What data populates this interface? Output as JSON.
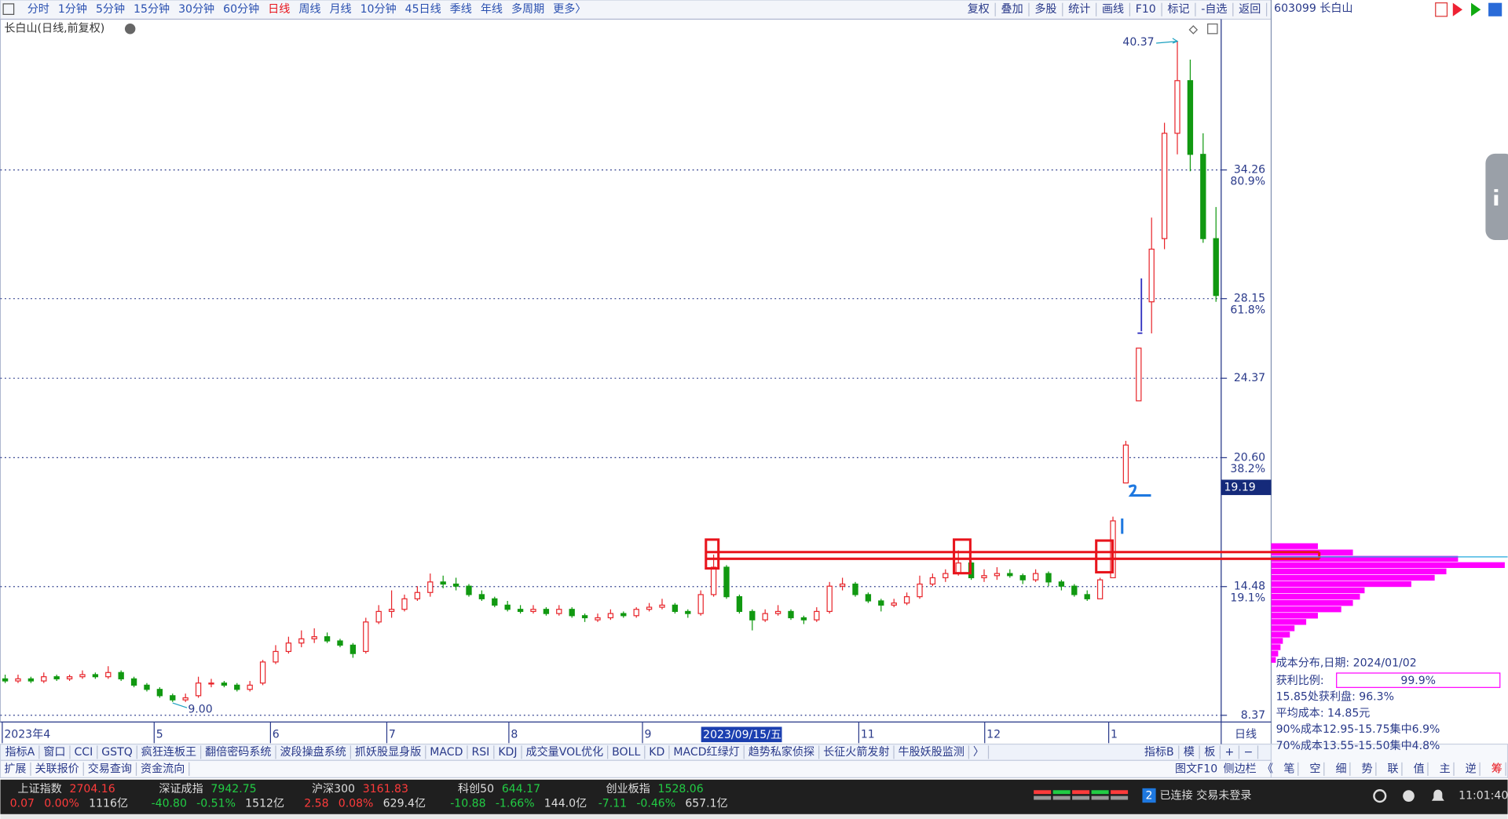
{
  "toolbar": {
    "periods": [
      "分时",
      "1分钟",
      "5分钟",
      "15分钟",
      "30分钟",
      "60分钟",
      "日线",
      "周线",
      "月线",
      "10分钟",
      "45日线",
      "季线",
      "年线",
      "多周期",
      "更多〉"
    ],
    "tools": [
      "复权",
      "叠加",
      "多股",
      "统计",
      "画线",
      "F10",
      "标记",
      "-自选",
      "返回"
    ],
    "stock": "603099 长白山"
  },
  "chart_data": {
    "type": "candlestick",
    "title": "长白山(日线,前复权)",
    "up_color": "#e8262c",
    "down_color": "#119911",
    "grid": true,
    "ylim": [
      8.05,
      41.28
    ],
    "yticks": [
      8.37,
      14.48,
      {
        "value": 20.6,
        "label": "20.60"
      },
      24.37,
      28.15,
      34.26
    ],
    "ytick_percent_labels": [
      null,
      "19.1%",
      "38.2%",
      null,
      "61.8%",
      "80.9%"
    ],
    "x_labels": [
      "2023年4",
      "5",
      "6",
      "7",
      "8",
      "9",
      "11",
      "12",
      "1"
    ],
    "period_label": "日线",
    "cursor_date": "2023/09/15/五",
    "cursor_price": 19.19,
    "high_label": "40.37",
    "low_label": "9.00",
    "candles": [
      [
        10.1,
        10.3,
        9.9,
        10.0
      ],
      [
        10.0,
        10.3,
        9.9,
        10.1
      ],
      [
        10.1,
        10.2,
        9.9,
        10.0
      ],
      [
        10.0,
        10.4,
        9.9,
        10.2
      ],
      [
        10.2,
        10.3,
        10.0,
        10.1
      ],
      [
        10.1,
        10.3,
        10.0,
        10.2
      ],
      [
        10.2,
        10.5,
        10.1,
        10.3
      ],
      [
        10.3,
        10.4,
        10.1,
        10.2
      ],
      [
        10.2,
        10.7,
        10.1,
        10.4
      ],
      [
        10.4,
        10.5,
        10.0,
        10.1
      ],
      [
        10.1,
        10.2,
        9.7,
        9.8
      ],
      [
        9.8,
        9.9,
        9.5,
        9.6
      ],
      [
        9.6,
        9.7,
        9.2,
        9.3
      ],
      [
        9.3,
        9.4,
        9.0,
        9.1
      ],
      [
        9.1,
        9.4,
        9.0,
        9.2
      ],
      [
        9.3,
        10.2,
        9.2,
        9.9
      ],
      [
        9.9,
        10.1,
        9.7,
        9.9
      ],
      [
        9.9,
        10.0,
        9.7,
        9.8
      ],
      [
        9.8,
        9.9,
        9.5,
        9.6
      ],
      [
        9.6,
        10.0,
        9.5,
        9.8
      ],
      [
        9.9,
        11.0,
        9.8,
        10.9
      ],
      [
        10.9,
        11.7,
        10.8,
        11.4
      ],
      [
        11.4,
        12.1,
        11.3,
        11.8
      ],
      [
        11.8,
        12.4,
        11.6,
        12.0
      ],
      [
        12.0,
        12.5,
        11.8,
        12.1
      ],
      [
        12.1,
        12.3,
        11.8,
        11.9
      ],
      [
        11.9,
        12.0,
        11.6,
        11.7
      ],
      [
        11.7,
        11.8,
        11.1,
        11.3
      ],
      [
        11.4,
        13.0,
        11.3,
        12.8
      ],
      [
        12.8,
        13.6,
        12.7,
        13.3
      ],
      [
        13.3,
        14.3,
        13.0,
        13.4
      ],
      [
        13.4,
        14.1,
        13.3,
        13.9
      ],
      [
        13.9,
        14.5,
        13.8,
        14.2
      ],
      [
        14.2,
        15.1,
        14.0,
        14.7
      ],
      [
        14.7,
        15.0,
        14.4,
        14.6
      ],
      [
        14.6,
        14.9,
        14.3,
        14.5
      ],
      [
        14.5,
        14.6,
        14.0,
        14.1
      ],
      [
        14.1,
        14.3,
        13.8,
        13.9
      ],
      [
        13.9,
        14.0,
        13.5,
        13.6
      ],
      [
        13.6,
        13.8,
        13.3,
        13.4
      ],
      [
        13.4,
        13.6,
        13.2,
        13.3
      ],
      [
        13.3,
        13.6,
        13.2,
        13.4
      ],
      [
        13.4,
        13.5,
        13.1,
        13.2
      ],
      [
        13.2,
        13.6,
        13.1,
        13.4
      ],
      [
        13.4,
        13.5,
        13.0,
        13.1
      ],
      [
        13.1,
        13.2,
        12.8,
        13.0
      ],
      [
        12.9,
        13.2,
        12.8,
        13.0
      ],
      [
        13.0,
        13.4,
        12.9,
        13.2
      ],
      [
        13.2,
        13.3,
        13.0,
        13.1
      ],
      [
        13.1,
        13.5,
        13.0,
        13.4
      ],
      [
        13.4,
        13.7,
        13.3,
        13.5
      ],
      [
        13.5,
        13.9,
        13.4,
        13.6
      ],
      [
        13.6,
        13.7,
        13.2,
        13.3
      ],
      [
        13.3,
        13.4,
        13.0,
        13.2
      ],
      [
        13.2,
        14.3,
        13.1,
        14.1
      ],
      [
        14.1,
        16.0,
        14.0,
        15.4
      ],
      [
        15.4,
        15.5,
        13.9,
        14.0
      ],
      [
        14.0,
        14.1,
        13.2,
        13.3
      ],
      [
        13.3,
        13.4,
        12.4,
        12.9
      ],
      [
        12.9,
        13.4,
        12.8,
        13.2
      ],
      [
        13.2,
        13.6,
        13.1,
        13.3
      ],
      [
        13.3,
        13.4,
        12.9,
        13.0
      ],
      [
        13.0,
        13.1,
        12.7,
        12.9
      ],
      [
        12.9,
        13.5,
        12.8,
        13.3
      ],
      [
        13.3,
        14.7,
        13.2,
        14.5
      ],
      [
        14.5,
        14.9,
        14.3,
        14.6
      ],
      [
        14.6,
        14.7,
        14.0,
        14.1
      ],
      [
        14.1,
        14.2,
        13.7,
        13.8
      ],
      [
        13.8,
        13.9,
        13.3,
        13.6
      ],
      [
        13.6,
        13.9,
        13.5,
        13.7
      ],
      [
        13.7,
        14.2,
        13.6,
        14.0
      ],
      [
        14.0,
        15.0,
        13.9,
        14.6
      ],
      [
        14.6,
        15.1,
        14.5,
        14.9
      ],
      [
        14.9,
        15.3,
        14.7,
        15.1
      ],
      [
        15.1,
        16.2,
        15.0,
        15.6
      ],
      [
        15.6,
        15.7,
        14.8,
        14.9
      ],
      [
        14.9,
        15.3,
        14.7,
        15.0
      ],
      [
        15.0,
        15.4,
        14.8,
        15.1
      ],
      [
        15.1,
        15.3,
        14.9,
        15.0
      ],
      [
        15.0,
        15.1,
        14.6,
        14.8
      ],
      [
        14.8,
        15.3,
        14.7,
        15.1
      ],
      [
        15.1,
        15.2,
        14.5,
        14.7
      ],
      [
        14.7,
        14.8,
        14.3,
        14.5
      ],
      [
        14.5,
        14.6,
        14.0,
        14.1
      ],
      [
        14.1,
        14.3,
        13.8,
        13.9
      ],
      [
        13.9,
        14.9,
        13.9,
        14.8
      ],
      [
        14.9,
        17.8,
        14.9,
        17.6
      ],
      [
        19.4,
        21.4,
        19.4,
        21.2
      ],
      [
        23.3,
        25.8,
        23.3,
        25.8
      ],
      [
        28.0,
        32.0,
        26.5,
        30.5
      ],
      [
        31.0,
        36.5,
        30.5,
        36.0
      ],
      [
        36.0,
        40.37,
        35.0,
        38.5
      ],
      [
        38.5,
        39.5,
        34.2,
        35.0
      ],
      [
        35.0,
        36.0,
        30.8,
        31.0
      ],
      [
        31.0,
        32.5,
        28.0,
        28.3
      ]
    ],
    "cost_distribution": {
      "type": "bar",
      "color": "#ff00ff",
      "prices": [
        16.4,
        16.1,
        15.8,
        15.5,
        15.2,
        14.9,
        14.6,
        14.3,
        14.0,
        13.7,
        13.4,
        13.1,
        12.8,
        12.5,
        12.2,
        11.9,
        11.6,
        11.3,
        11.0
      ],
      "values": [
        20,
        35,
        80,
        100,
        75,
        70,
        60,
        40,
        38,
        35,
        30,
        20,
        15,
        10,
        8,
        5,
        4,
        3,
        2
      ]
    }
  },
  "cost_info": {
    "title": "成本分布,日期: 2024/01/02",
    "profit_ratio_label": "获利比例:",
    "profit_ratio": "99.9%",
    "lines": [
      "15.85处获利盘: 96.3%",
      "平均成本: 14.85元",
      "90%成本12.95-15.75集中6.9%",
      "70%成本13.55-15.50集中4.8%"
    ]
  },
  "indicator_tabs": [
    "指标A",
    "窗口",
    "CCI",
    "GSTQ",
    "疯狂连板王",
    "翻倍密码系统",
    "波段操盘系统",
    "抓妖股显身版",
    "MACD",
    "RSI",
    "KDJ",
    "成交量VOL优化",
    "BOLL",
    "KD",
    "MACD红绿灯",
    "趋势私家侦探",
    "长征火箭发射",
    "牛股妖股监测",
    "〉"
  ],
  "indicator_right": [
    "指标B",
    "模",
    "板",
    "+",
    "−"
  ],
  "extra_tabs": [
    "扩展",
    "关联报价",
    "交易查询",
    "资金流向"
  ],
  "right_tabs": [
    "图文F10",
    "侧边栏",
    "《"
  ],
  "side_buttons": [
    "笔",
    "空",
    "细",
    "势",
    "联",
    "值",
    "主",
    "逆",
    "筹"
  ],
  "indices": [
    {
      "name": "上证指数",
      "price": "2704.16",
      "change": "0.07",
      "pct": "0.00%",
      "amount": "1116亿"
    },
    {
      "name": "深证成指",
      "price": "7942.75",
      "change": "-40.80",
      "pct": "-0.51%",
      "amount": "1512亿"
    },
    {
      "name": "沪深300",
      "price": "3161.83",
      "change": "2.58",
      "pct": "0.08%",
      "amount": "629.4亿"
    },
    {
      "name": "科创50",
      "price": "644.17",
      "change": "-10.88",
      "pct": "-1.66%",
      "amount": "144.0亿"
    },
    {
      "name": "创业板指",
      "price": "1528.06",
      "change": "-7.11",
      "pct": "-0.46%",
      "amount": "657.1亿"
    }
  ],
  "status": {
    "badge": "2",
    "text": "已连接 交易未登录",
    "time": "11:01:40"
  }
}
